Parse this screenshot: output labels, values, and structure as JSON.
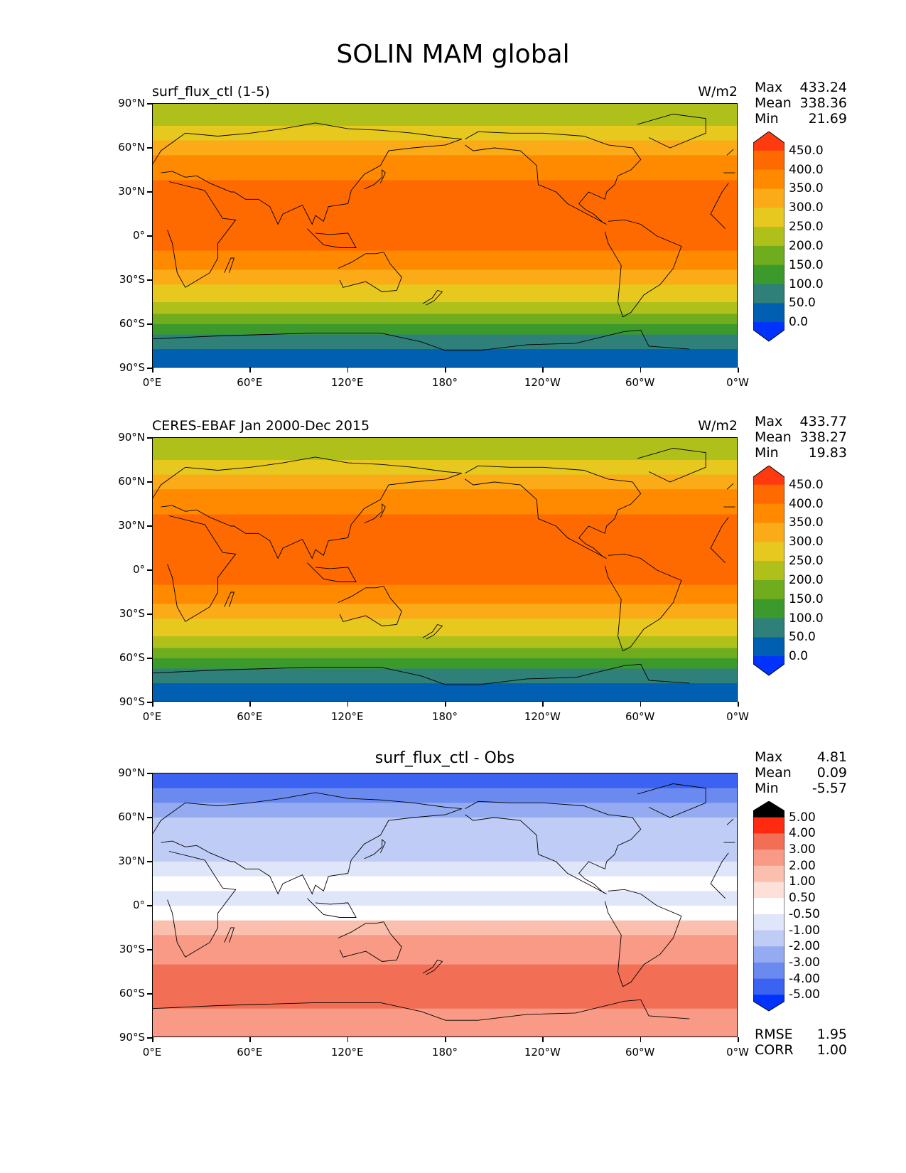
{
  "figure_title": "SOLIN MAM global",
  "y_ticks": [
    "90°N",
    "60°N",
    "30°N",
    "0°",
    "30°S",
    "60°S",
    "90°S"
  ],
  "x_ticks": [
    "0°E",
    "60°E",
    "120°E",
    "180°",
    "120°W",
    "60°W",
    "0°W"
  ],
  "panels": [
    {
      "title": "surf_flux_ctl (1-5)",
      "units": "W/m2",
      "stats": {
        "max_label": "Max",
        "max": "433.24",
        "mean_label": "Mean",
        "mean": "338.36",
        "min_label": "Min",
        "min": "21.69"
      },
      "colorbar_labels": [
        "450.0",
        "400.0",
        "350.0",
        "300.0",
        "250.0",
        "200.0",
        "150.0",
        "100.0",
        "50.0",
        "0.0"
      ]
    },
    {
      "title": "CERES-EBAF Jan 2000-Dec 2015",
      "units": "W/m2",
      "stats": {
        "max_label": "Max",
        "max": "433.77",
        "mean_label": "Mean",
        "mean": "338.27",
        "min_label": "Min",
        "min": "19.83"
      },
      "colorbar_labels": [
        "450.0",
        "400.0",
        "350.0",
        "300.0",
        "250.0",
        "200.0",
        "150.0",
        "100.0",
        "50.0",
        "0.0"
      ]
    },
    {
      "title": "surf_flux_ctl - Obs",
      "units": "",
      "stats": {
        "max_label": "Max",
        "max": "4.81",
        "mean_label": "Mean",
        "mean": "0.09",
        "min_label": "Min",
        "min": "-5.57"
      },
      "colorbar_labels": [
        "5.00",
        "4.00",
        "3.00",
        "2.00",
        "1.00",
        "0.50",
        "-0.50",
        "-1.00",
        "-2.00",
        "-3.00",
        "-4.00",
        "-5.00"
      ],
      "rmse_label": "RMSE",
      "rmse": "1.95",
      "corr_label": "CORR",
      "corr": "1.00"
    }
  ],
  "colors": {
    "flux_scale": [
      "#0033ff",
      "#005fb0",
      "#2e8078",
      "#3c9a2c",
      "#6fad1e",
      "#b0c01a",
      "#e6c81f",
      "#fbaa18",
      "#ff8a00",
      "#ff6a00",
      "#ff3a10"
    ],
    "diff_scale": [
      "#0033ff",
      "#3b62f0",
      "#6a8af0",
      "#94abf2",
      "#bfcdf6",
      "#dfe6fa",
      "#ffffff",
      "#fde0d8",
      "#fbbfae",
      "#f89a86",
      "#f26f56",
      "#ff2a10"
    ]
  },
  "chart_data": [
    {
      "type": "heatmap",
      "title": "surf_flux_ctl (1-5)",
      "units": "W/m2",
      "lat_bands_deg": [
        90,
        75,
        65,
        55,
        38,
        -10,
        -23,
        -33,
        -45,
        -53,
        -60,
        -67,
        -77,
        -90
      ],
      "band_values": [
        225,
        275,
        325,
        375,
        425,
        375,
        325,
        275,
        225,
        175,
        125,
        75,
        25
      ],
      "levels": [
        0,
        50,
        100,
        150,
        200,
        250,
        300,
        350,
        400,
        450
      ],
      "stats": {
        "max": 433.24,
        "mean": 338.36,
        "min": 21.69
      }
    },
    {
      "type": "heatmap",
      "title": "CERES-EBAF Jan 2000-Dec 2015",
      "units": "W/m2",
      "lat_bands_deg": [
        90,
        75,
        65,
        55,
        38,
        -10,
        -23,
        -33,
        -45,
        -53,
        -60,
        -67,
        -77,
        -90
      ],
      "band_values": [
        225,
        275,
        325,
        375,
        425,
        375,
        325,
        275,
        225,
        175,
        125,
        75,
        25
      ],
      "levels": [
        0,
        50,
        100,
        150,
        200,
        250,
        300,
        350,
        400,
        450
      ],
      "stats": {
        "max": 433.77,
        "mean": 338.27,
        "min": 19.83
      }
    },
    {
      "type": "heatmap",
      "title": "surf_flux_ctl - Obs",
      "lat_bands_deg": [
        90,
        80,
        70,
        60,
        50,
        40,
        30,
        20,
        10,
        0,
        -10,
        -20,
        -30,
        -40,
        -50,
        -60,
        -70,
        -80,
        -90
      ],
      "band_values": [
        -4.5,
        -3.5,
        -2.5,
        -1.5,
        -1.5,
        -1.5,
        -1,
        0,
        -0.7,
        0,
        1.5,
        2.5,
        2.5,
        3,
        3.5,
        3.5,
        2.5,
        2
      ],
      "levels": [
        -5,
        -4,
        -3,
        -2,
        -1,
        -0.5,
        0.5,
        1,
        2,
        3,
        4,
        5
      ],
      "stats": {
        "max": 4.81,
        "mean": 0.09,
        "min": -5.57,
        "rmse": 1.95,
        "corr": 1.0
      }
    }
  ]
}
